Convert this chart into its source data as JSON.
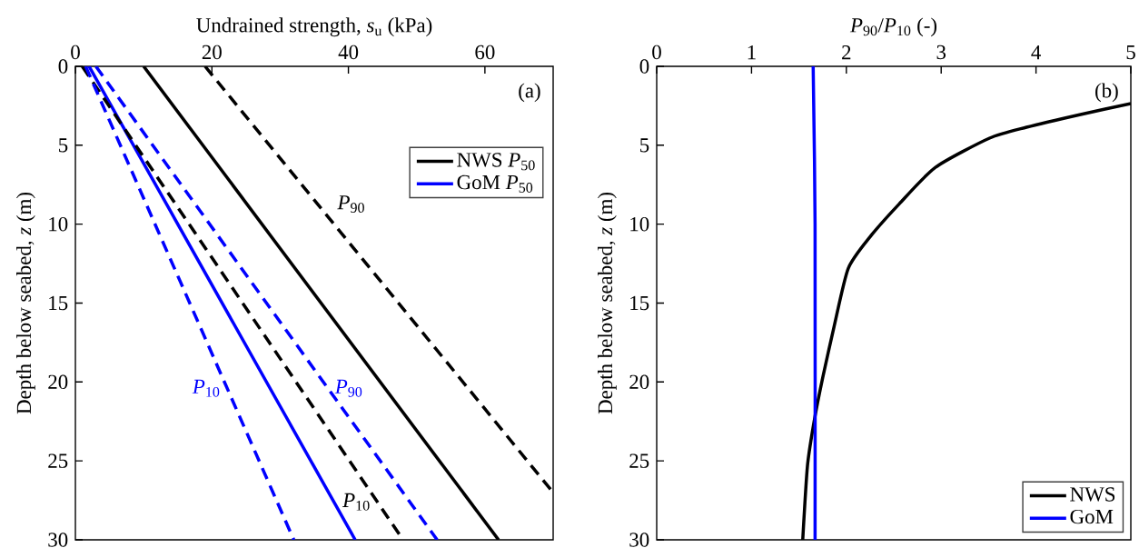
{
  "chart_data": [
    {
      "type": "line",
      "xlabel": "Undrained strength, *s*$_{u}$ (kPa)",
      "ylabel": "Depth below seabed, *z* (m)",
      "xlim": [
        0,
        70
      ],
      "xticks": [
        0,
        20,
        40,
        60
      ],
      "ylim": [
        30,
        0
      ],
      "yticks": [
        0,
        5,
        10,
        15,
        20,
        25,
        30
      ],
      "legend": "top right",
      "annotations": [
        "(a)"
      ],
      "series": [
        {
          "name": "NWS *P*$_{50}$",
          "color": "#000000",
          "line_style": "solid",
          "x": [
            10,
            62
          ],
          "values": [
            0,
            30
          ]
        },
        {
          "name": "GoM *P*$_{50}$",
          "color": "#0000ff",
          "line_style": "solid",
          "x": [
            2,
            41
          ],
          "values": [
            0,
            30
          ]
        },
        {
          "name": "*P*$_{90}$",
          "color": "#000000",
          "line_style": "dashed",
          "x": [
            19,
            70
          ],
          "values": [
            0,
            27
          ]
        },
        {
          "name": "*P*$_{10}$",
          "color": "#000000",
          "line_style": "dashed",
          "x": [
            1,
            48
          ],
          "values": [
            0,
            30
          ]
        },
        {
          "name": "*P*$_{10}$",
          "color": "#0000ff",
          "line_style": "dashed",
          "x": [
            1.5,
            32
          ],
          "values": [
            0,
            30
          ]
        },
        {
          "name": "*P*$_{90}$",
          "color": "#0000ff",
          "line_style": "dashed",
          "x": [
            3,
            53
          ],
          "values": [
            0,
            30
          ]
        }
      ]
    },
    {
      "type": "line",
      "xlabel": "*P*$_{90}$/*P*$_{10}$ (-)",
      "ylabel": "Depth below seabed, *z* (m)",
      "xlim": [
        0,
        5
      ],
      "xticks": [
        0,
        1,
        2,
        3,
        4,
        5
      ],
      "ylim": [
        30,
        0
      ],
      "yticks": [
        0,
        5,
        10,
        15,
        20,
        25,
        30
      ],
      "legend": "bottom right",
      "annotations": [
        "(b)"
      ],
      "series": [
        {
          "name": "NWS",
          "color": "#000000",
          "line_style": "solid",
          "x": [
            5,
            4.47,
            3.9,
            3.51,
            2.94,
            2.56,
            2.25,
            2.02,
            1.87,
            1.75,
            1.66,
            1.59,
            1.54
          ],
          "values": [
            2.36,
            3.05,
            3.86,
            4.55,
            6.4,
            8.7,
            10.8,
            12.8,
            16.5,
            19.75,
            22.5,
            25.3,
            30
          ]
        },
        {
          "name": "GoM",
          "color": "#0000ff",
          "line_style": "solid",
          "x": [
            1.65,
            1.67,
            1.67
          ],
          "values": [
            0,
            10,
            30
          ]
        }
      ]
    }
  ]
}
